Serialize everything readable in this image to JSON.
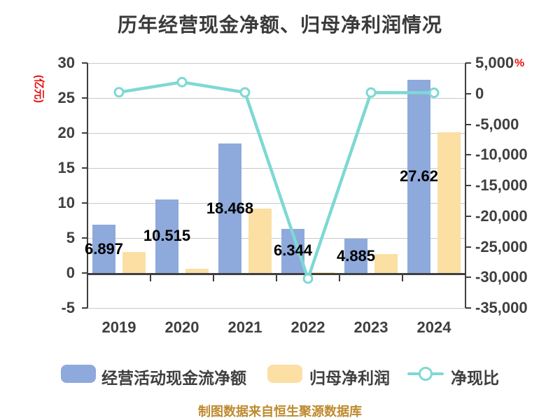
{
  "title": "历年经营现金净额、归母净利润情况",
  "footer": "制图数据来自恒生聚源数据库",
  "colors": {
    "bar_cash": "#8ea9db",
    "bar_profit": "#fbdfa3",
    "ratio_line": "#7fd8d4",
    "marker_fill": "#ffffff",
    "unit_label": "#e81010",
    "footer_text": "#be8a2f",
    "text": "#3f3f3f",
    "grid": "#c9c9c9",
    "axis": "#3f3f3f",
    "data_label": "#000000"
  },
  "chart_data": {
    "type": "bar",
    "subtype": "combo-bar-line-dual-axis",
    "title": "历年经营现金净额、归母净利润情况",
    "categories": [
      "2019",
      "2020",
      "2021",
      "2022",
      "2023",
      "2024"
    ],
    "series": [
      {
        "name": "经营活动现金流净额",
        "type": "bar",
        "axis": "left",
        "color": "#8ea9db",
        "values": [
          6.897,
          10.515,
          18.468,
          6.344,
          4.885,
          27.62
        ],
        "labels": [
          "6.897",
          "10.515",
          "18.468",
          "6.344",
          "4.885",
          "27.62"
        ]
      },
      {
        "name": "归母净利润",
        "type": "bar",
        "axis": "left",
        "color": "#fbdfa3",
        "values": [
          3.0,
          0.65,
          9.2,
          0.15,
          2.7,
          20.1
        ]
      },
      {
        "name": "净现比",
        "type": "line",
        "axis": "right",
        "color": "#7fd8d4",
        "values": [
          225,
          1880,
          200,
          -30200,
          175,
          140
        ]
      }
    ],
    "left_axis": {
      "unit": "(亿元)",
      "min": -5,
      "max": 30,
      "step": 5,
      "ticks": [
        "30",
        "25",
        "20",
        "15",
        "10",
        "5",
        "0",
        "-5"
      ]
    },
    "right_axis": {
      "unit": "%",
      "min": -35000,
      "max": 5000,
      "step": 5000,
      "ticks": [
        "5,000",
        "0",
        "-5,000",
        "-10,000",
        "-15,000",
        "-20,000",
        "-25,000",
        "-30,000",
        "-35,000"
      ]
    },
    "grid": true,
    "legend_position": "bottom"
  },
  "legend": {
    "items": [
      {
        "label": "经营活动现金流净额",
        "swatch": "bar"
      },
      {
        "label": "归母净利润",
        "swatch": "bar"
      },
      {
        "label": "净现比",
        "swatch": "line-marker"
      }
    ]
  }
}
